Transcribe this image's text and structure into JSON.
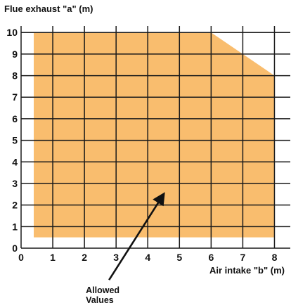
{
  "chart_data": {
    "type": "area",
    "title": "",
    "ylabel": "Flue exhaust \"a\" (m)",
    "xlabel": "Air intake \"b\" (m)",
    "xlim": [
      0,
      8.5
    ],
    "ylim": [
      0,
      10.3
    ],
    "x_ticks": [
      "0",
      "1",
      "2",
      "3",
      "4",
      "5",
      "6",
      "7",
      "8"
    ],
    "y_ticks": [
      "0",
      "1",
      "2",
      "3",
      "4",
      "5",
      "6",
      "7",
      "8",
      "9",
      "10"
    ],
    "grid": true,
    "region": {
      "name": "Allowed Values",
      "color": "#f9bd6e",
      "polygon": [
        {
          "x": 0.4,
          "y": 0.5
        },
        {
          "x": 8.0,
          "y": 0.5
        },
        {
          "x": 8.0,
          "y": 8.0
        },
        {
          "x": 6.0,
          "y": 10.0
        },
        {
          "x": 0.4,
          "y": 10.0
        }
      ]
    },
    "annotations": [
      {
        "lines": [
          "Allowed",
          "Values"
        ],
        "points_to": {
          "x": 4.5,
          "y": 2.5
        },
        "text_at": {
          "x": 2.6,
          "y": -1.8
        }
      }
    ]
  }
}
